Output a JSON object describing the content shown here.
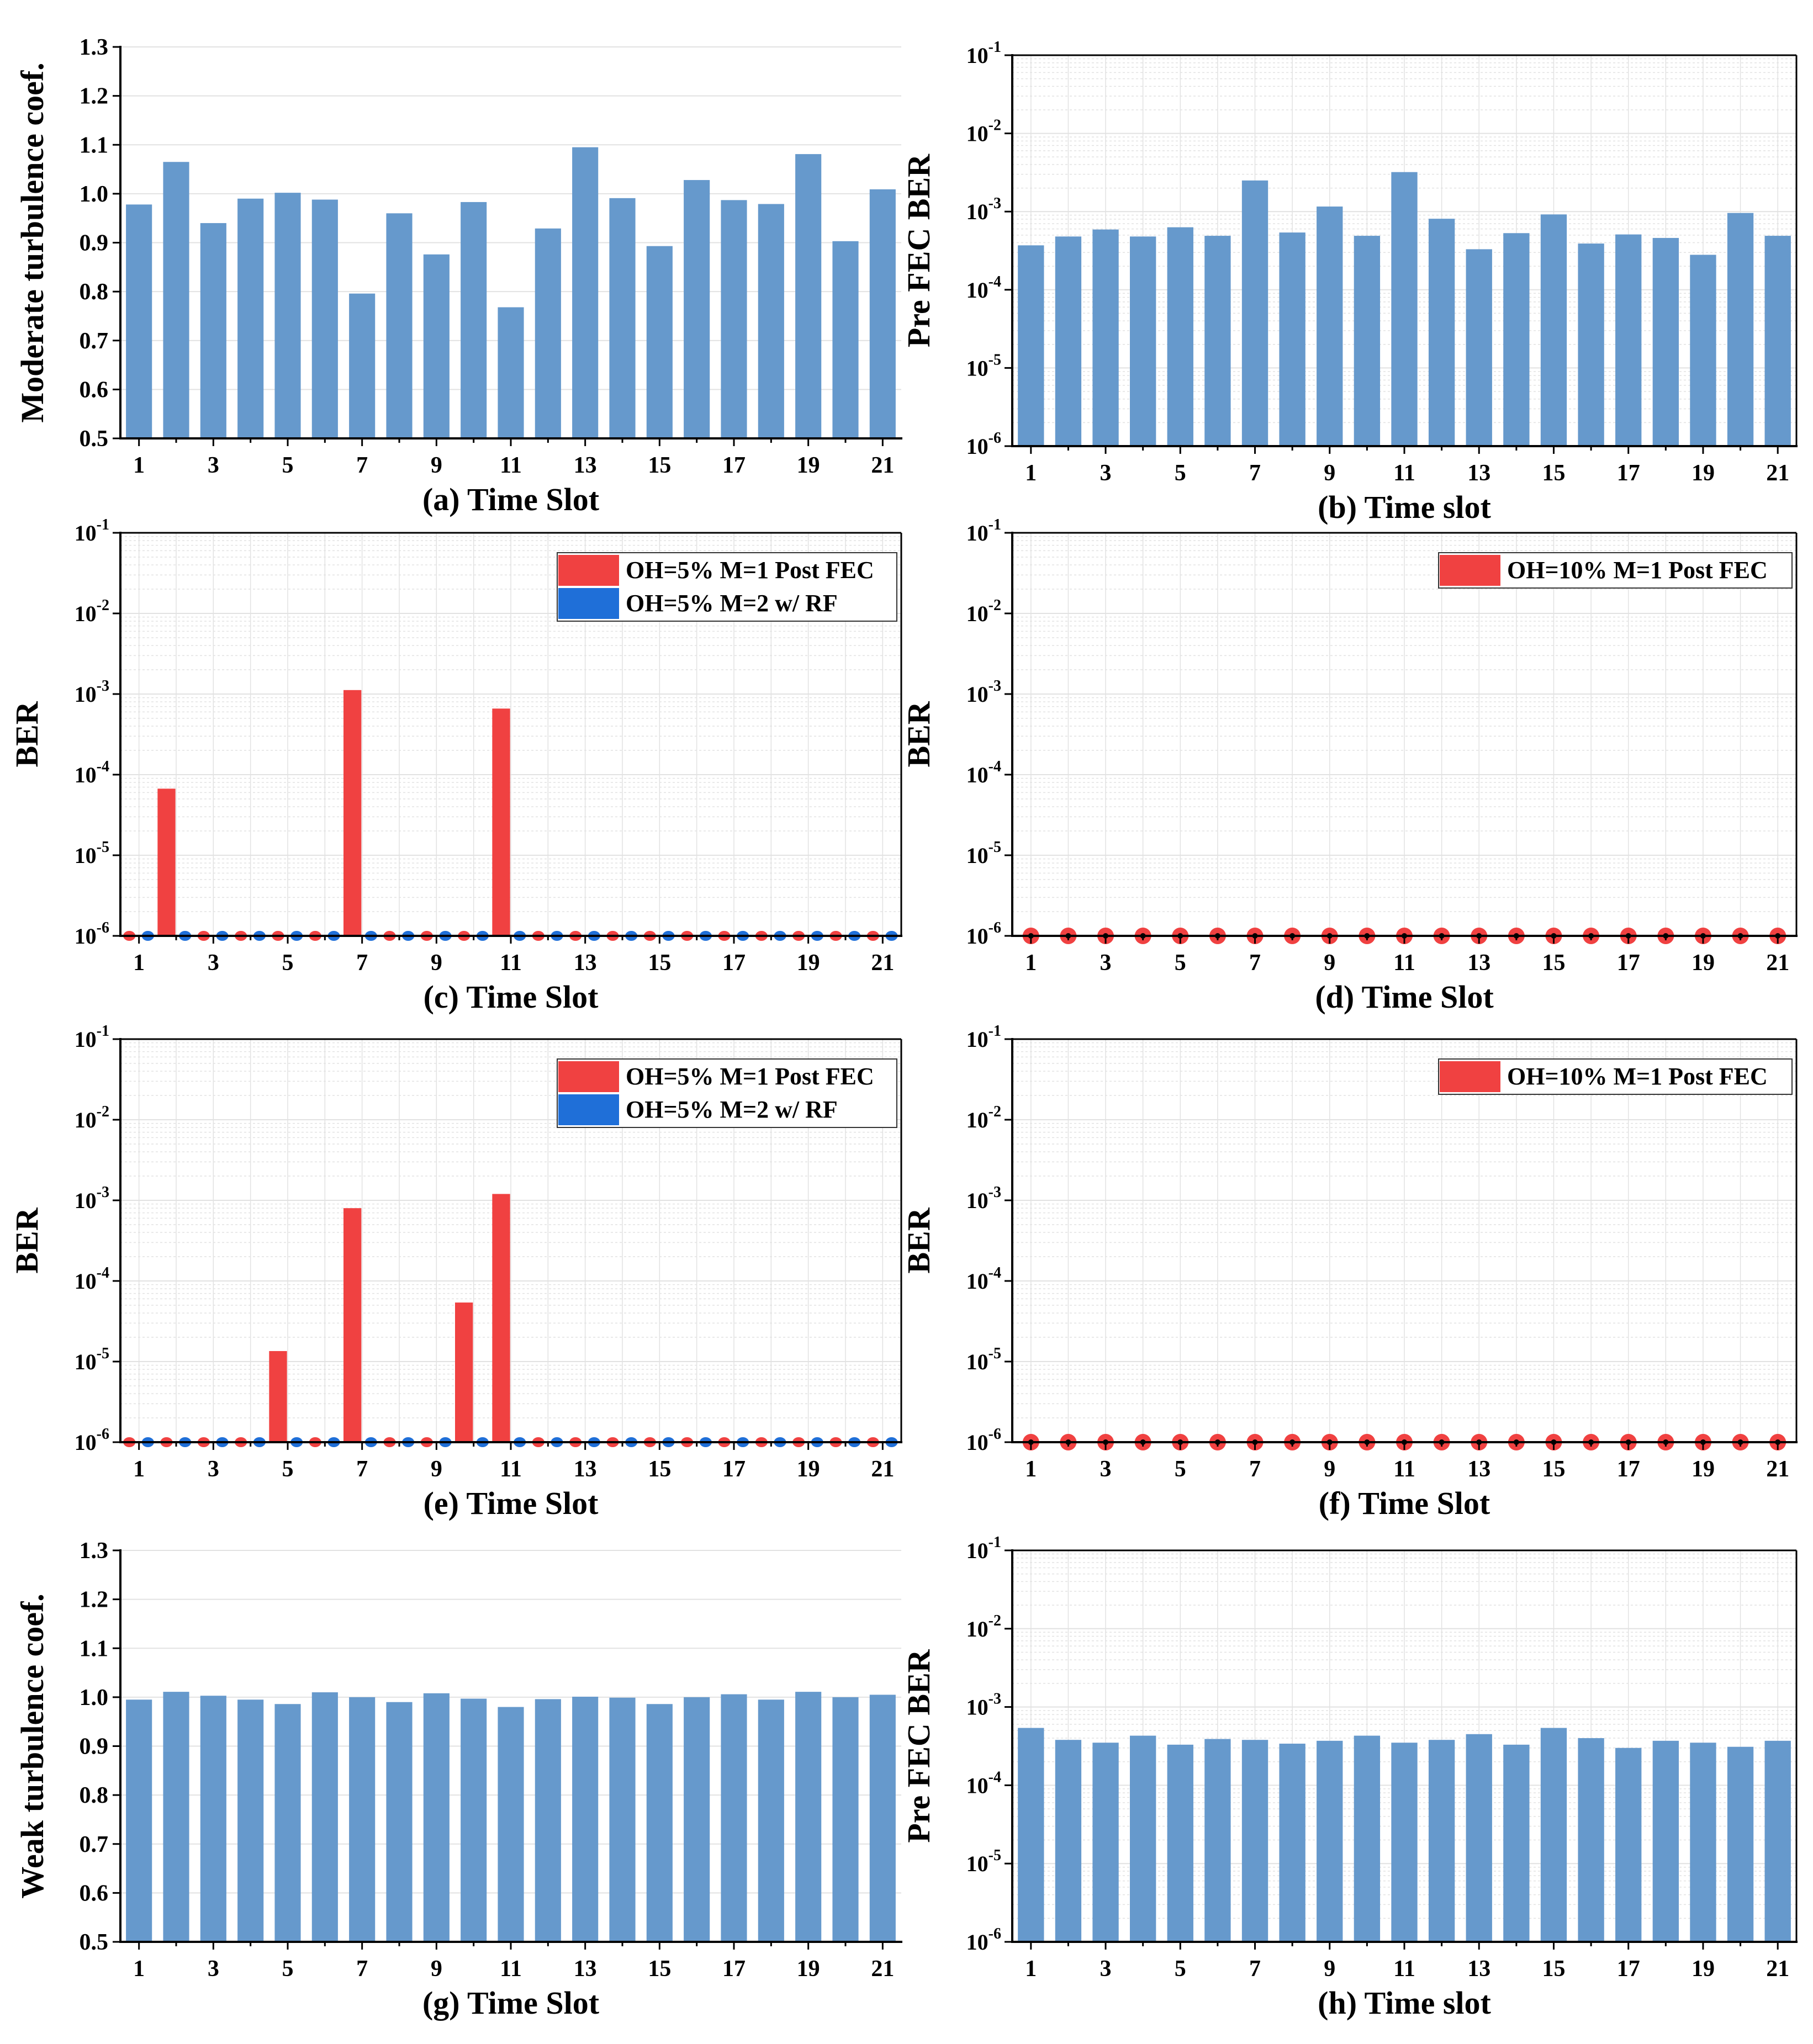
{
  "colors": {
    "bar": "#6699CC",
    "red": "#F04141",
    "blue": "#1F6FD8",
    "grid": "#E2E2E2",
    "axis": "#000000"
  },
  "chart_data": [
    {
      "id": "a",
      "type": "bar",
      "scale": "linear",
      "caption_tag": "(a)",
      "caption_text": "Time Slot",
      "ylabel": "Moderate turbulence coef.",
      "ylim": [
        0.5,
        1.3
      ],
      "yticks": [
        "0.5",
        "0.6",
        "0.7",
        "0.8",
        "0.9",
        "1.0",
        "1.1",
        "1.2",
        "1.3"
      ],
      "xticks": [
        "1",
        "3",
        "5",
        "7",
        "9",
        "11",
        "13",
        "15",
        "17",
        "19",
        "21"
      ],
      "categories": [
        1,
        2,
        3,
        4,
        5,
        6,
        7,
        8,
        9,
        10,
        11,
        12,
        13,
        14,
        15,
        16,
        17,
        18,
        19,
        20,
        21
      ],
      "values": [
        0.978,
        1.065,
        0.94,
        0.99,
        1.002,
        0.988,
        0.796,
        0.96,
        0.876,
        0.983,
        0.768,
        0.929,
        1.095,
        0.991,
        0.893,
        1.028,
        0.987,
        0.979,
        1.081,
        0.903,
        1.009
      ]
    },
    {
      "id": "b",
      "type": "bar",
      "scale": "log",
      "caption_tag": "(b)",
      "caption_text": "Time slot",
      "ylabel": "Pre FEC BER",
      "ylim": [
        1e-06,
        0.1
      ],
      "yticks_exp": [
        "-6",
        "-5",
        "-4",
        "-3",
        "-2",
        "-1"
      ],
      "xticks": [
        "1",
        "3",
        "5",
        "7",
        "9",
        "11",
        "13",
        "15",
        "17",
        "19",
        "21"
      ],
      "categories": [
        1,
        2,
        3,
        4,
        5,
        6,
        7,
        8,
        9,
        10,
        11,
        12,
        13,
        14,
        15,
        16,
        17,
        18,
        19,
        20,
        21
      ],
      "values": [
        0.00037,
        0.00048,
        0.00059,
        0.00048,
        0.00063,
        0.00049,
        0.0025,
        0.00054,
        0.00116,
        0.00049,
        0.0032,
        0.00081,
        0.00033,
        0.00053,
        0.00092,
        0.00039,
        0.00051,
        0.00046,
        0.00028,
        0.00096,
        0.00049
      ]
    },
    {
      "id": "c",
      "type": "bar",
      "scale": "log",
      "caption_tag": "(c)",
      "caption_text": "Time Slot",
      "ylabel": "BER",
      "ylim": [
        1e-06,
        0.1
      ],
      "yticks_exp": [
        "-6",
        "-5",
        "-4",
        "-3",
        "-2",
        "-1"
      ],
      "xticks": [
        "1",
        "3",
        "5",
        "7",
        "9",
        "11",
        "13",
        "15",
        "17",
        "19",
        "21"
      ],
      "categories": [
        1,
        2,
        3,
        4,
        5,
        6,
        7,
        8,
        9,
        10,
        11,
        12,
        13,
        14,
        15,
        16,
        17,
        18,
        19,
        20,
        21
      ],
      "legend_position": "top-right",
      "series": [
        {
          "name": "OH=5% M=1 Post FEC",
          "color": "#F04141",
          "values": [
            0,
            6.7e-05,
            0,
            0,
            0,
            0,
            0.00112,
            0,
            0,
            0,
            0.00066,
            0,
            0,
            0,
            0,
            0,
            0,
            0,
            0,
            0,
            0
          ]
        },
        {
          "name": "OH=5% M=2 w/ RF",
          "color": "#1F6FD8",
          "values": [
            0,
            0,
            0,
            0,
            0,
            0,
            0,
            0,
            0,
            0,
            0,
            0,
            0,
            0,
            0,
            0,
            0,
            0,
            0,
            0,
            0
          ]
        }
      ]
    },
    {
      "id": "d",
      "type": "bar",
      "scale": "log",
      "caption_tag": "(d)",
      "caption_text": "Time Slot",
      "ylabel": "BER",
      "ylim": [
        1e-06,
        0.1
      ],
      "yticks_exp": [
        "-6",
        "-5",
        "-4",
        "-3",
        "-2",
        "-1"
      ],
      "xticks": [
        "1",
        "3",
        "5",
        "7",
        "9",
        "11",
        "13",
        "15",
        "17",
        "19",
        "21"
      ],
      "categories": [
        1,
        2,
        3,
        4,
        5,
        6,
        7,
        8,
        9,
        10,
        11,
        12,
        13,
        14,
        15,
        16,
        17,
        18,
        19,
        20,
        21
      ],
      "legend_position": "top-right",
      "series": [
        {
          "name": "OH=10% M=1 Post FEC",
          "color": "#F04141",
          "values": [
            0,
            0,
            0,
            0,
            0,
            0,
            0,
            0,
            0,
            0,
            0,
            0,
            0,
            0,
            0,
            0,
            0,
            0,
            0,
            0,
            0
          ]
        }
      ]
    },
    {
      "id": "e",
      "type": "bar",
      "scale": "log",
      "caption_tag": "(e)",
      "caption_text": "Time Slot",
      "ylabel": "BER",
      "ylim": [
        1e-06,
        0.1
      ],
      "yticks_exp": [
        "-6",
        "-5",
        "-4",
        "-3",
        "-2",
        "-1"
      ],
      "xticks": [
        "1",
        "3",
        "5",
        "7",
        "9",
        "11",
        "13",
        "15",
        "17",
        "19",
        "21"
      ],
      "categories": [
        1,
        2,
        3,
        4,
        5,
        6,
        7,
        8,
        9,
        10,
        11,
        12,
        13,
        14,
        15,
        16,
        17,
        18,
        19,
        20,
        21
      ],
      "legend_position": "top-right",
      "series": [
        {
          "name": "OH=5% M=1 Post FEC",
          "color": "#F04141",
          "values": [
            0,
            0,
            0,
            0,
            1.35e-05,
            0,
            0.0008,
            0,
            0,
            5.4e-05,
            0.0012,
            0,
            0,
            0,
            0,
            0,
            0,
            0,
            0,
            0,
            0
          ]
        },
        {
          "name": "OH=5% M=2 w/ RF",
          "color": "#1F6FD8",
          "values": [
            0,
            0,
            0,
            0,
            0,
            0,
            0,
            0,
            0,
            0,
            0,
            0,
            0,
            0,
            0,
            0,
            0,
            0,
            0,
            0,
            0
          ]
        }
      ]
    },
    {
      "id": "f",
      "type": "bar",
      "scale": "log",
      "caption_tag": "(f)",
      "caption_text": "Time Slot",
      "ylabel": "BER",
      "ylim": [
        1e-06,
        0.1
      ],
      "yticks_exp": [
        "-6",
        "-5",
        "-4",
        "-3",
        "-2",
        "-1"
      ],
      "xticks": [
        "1",
        "3",
        "5",
        "7",
        "9",
        "11",
        "13",
        "15",
        "17",
        "19",
        "21"
      ],
      "categories": [
        1,
        2,
        3,
        4,
        5,
        6,
        7,
        8,
        9,
        10,
        11,
        12,
        13,
        14,
        15,
        16,
        17,
        18,
        19,
        20,
        21
      ],
      "legend_position": "top-right",
      "series": [
        {
          "name": "OH=10% M=1 Post FEC",
          "color": "#F04141",
          "values": [
            0,
            0,
            0,
            0,
            0,
            0,
            0,
            0,
            0,
            0,
            0,
            0,
            0,
            0,
            0,
            0,
            0,
            0,
            0,
            0,
            0
          ]
        }
      ]
    },
    {
      "id": "g",
      "type": "bar",
      "scale": "linear",
      "caption_tag": "(g)",
      "caption_text": "Time Slot",
      "ylabel": "Weak turbulence coef.",
      "ylim": [
        0.5,
        1.3
      ],
      "yticks": [
        "0.5",
        "0.6",
        "0.7",
        "0.8",
        "0.9",
        "1.0",
        "1.1",
        "1.2",
        "1.3"
      ],
      "xticks": [
        "1",
        "3",
        "5",
        "7",
        "9",
        "11",
        "13",
        "15",
        "17",
        "19",
        "21"
      ],
      "categories": [
        1,
        2,
        3,
        4,
        5,
        6,
        7,
        8,
        9,
        10,
        11,
        12,
        13,
        14,
        15,
        16,
        17,
        18,
        19,
        20,
        21
      ],
      "values": [
        0.995,
        1.011,
        1.003,
        0.995,
        0.986,
        1.01,
        1.0,
        0.99,
        1.008,
        0.997,
        0.98,
        0.996,
        1.001,
        0.999,
        0.986,
        1.0,
        1.006,
        0.995,
        1.011,
        1.0,
        1.005
      ]
    },
    {
      "id": "h",
      "type": "bar",
      "scale": "log",
      "caption_tag": "(h)",
      "caption_text": "Time slot",
      "ylabel": "Pre FEC BER",
      "ylim": [
        1e-06,
        0.1
      ],
      "yticks_exp": [
        "-6",
        "-5",
        "-4",
        "-3",
        "-2",
        "-1"
      ],
      "xticks": [
        "1",
        "3",
        "5",
        "7",
        "9",
        "11",
        "13",
        "15",
        "17",
        "19",
        "21"
      ],
      "categories": [
        1,
        2,
        3,
        4,
        5,
        6,
        7,
        8,
        9,
        10,
        11,
        12,
        13,
        14,
        15,
        16,
        17,
        18,
        19,
        20,
        21
      ],
      "values": [
        0.00054,
        0.00038,
        0.00035,
        0.00043,
        0.00033,
        0.00039,
        0.00038,
        0.00034,
        0.00037,
        0.00043,
        0.00035,
        0.00038,
        0.00045,
        0.00033,
        0.00054,
        0.0004,
        0.0003,
        0.00037,
        0.00035,
        0.00031,
        0.00037
      ]
    }
  ]
}
